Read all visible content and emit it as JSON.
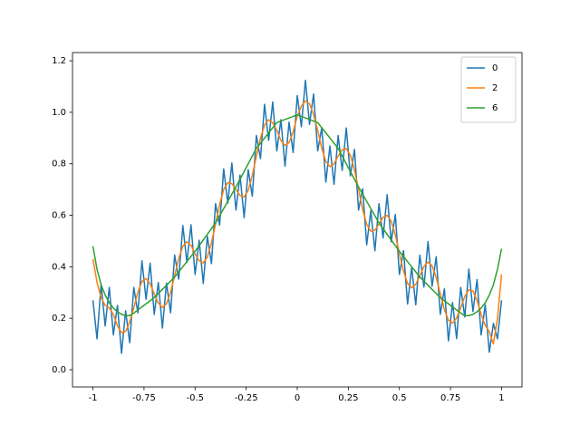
{
  "chart_data": {
    "type": "line",
    "x": [
      -1,
      -0.98,
      -0.96,
      -0.94,
      -0.92,
      -0.9,
      -0.88,
      -0.86,
      -0.84,
      -0.82,
      -0.8,
      -0.78,
      -0.76,
      -0.74,
      -0.72,
      -0.7,
      -0.68,
      -0.66,
      -0.64,
      -0.62,
      -0.6,
      -0.58,
      -0.56,
      -0.54,
      -0.52,
      -0.5,
      -0.48,
      -0.46,
      -0.44,
      -0.42,
      -0.4,
      -0.38,
      -0.36,
      -0.34,
      -0.32,
      -0.3,
      -0.28,
      -0.26,
      -0.24,
      -0.22,
      -0.2,
      -0.18,
      -0.16,
      -0.14,
      -0.12,
      -0.1,
      -0.08,
      -0.06,
      -0.04,
      -0.02,
      0,
      0.02,
      0.04,
      0.06,
      0.08,
      0.1,
      0.12,
      0.14,
      0.16,
      0.18,
      0.2,
      0.22,
      0.24,
      0.26,
      0.28,
      0.3,
      0.32,
      0.34,
      0.36,
      0.38,
      0.4,
      0.42,
      0.44,
      0.46,
      0.48,
      0.5,
      0.52,
      0.54,
      0.56,
      0.58,
      0.6,
      0.62,
      0.64,
      0.66,
      0.68,
      0.7,
      0.72,
      0.74,
      0.76,
      0.78,
      0.8,
      0.82,
      0.84,
      0.86,
      0.88,
      0.9,
      0.92,
      0.94,
      0.96,
      0.98,
      1
    ],
    "series": [
      {
        "name": "0",
        "color": "#1f77b4",
        "values": [
          0.27,
          0.12,
          0.33,
          0.17,
          0.32,
          0.135,
          0.25,
          0.064,
          0.229,
          0.105,
          0.32,
          0.221,
          0.423,
          0.274,
          0.414,
          0.215,
          0.339,
          0.162,
          0.336,
          0.221,
          0.445,
          0.352,
          0.56,
          0.417,
          0.563,
          0.37,
          0.503,
          0.335,
          0.518,
          0.412,
          0.645,
          0.562,
          0.78,
          0.647,
          0.803,
          0.62,
          0.756,
          0.591,
          0.777,
          0.674,
          0.91,
          0.82,
          1.031,
          0.891,
          1.04,
          0.85,
          0.971,
          0.791,
          0.962,
          0.844,
          1.065,
          0.944,
          1.124,
          0.953,
          1.071,
          0.85,
          0.94,
          0.729,
          0.869,
          0.72,
          0.91,
          0.774,
          0.939,
          0.753,
          0.856,
          0.62,
          0.703,
          0.485,
          0.618,
          0.462,
          0.645,
          0.512,
          0.68,
          0.497,
          0.603,
          0.37,
          0.463,
          0.255,
          0.398,
          0.252,
          0.445,
          0.321,
          0.498,
          0.324,
          0.439,
          0.215,
          0.314,
          0.112,
          0.261,
          0.121,
          0.32,
          0.205,
          0.391,
          0.226,
          0.35,
          0.135,
          0.252,
          0.068,
          0.18,
          0.12,
          0.27
        ]
      },
      {
        "name": "2",
        "color": "#ff7f0e",
        "values": [
          0.43,
          0.34,
          0.28,
          0.25,
          0.24,
          0.215,
          0.17,
          0.144,
          0.149,
          0.185,
          0.24,
          0.301,
          0.343,
          0.354,
          0.334,
          0.295,
          0.259,
          0.242,
          0.256,
          0.301,
          0.365,
          0.432,
          0.48,
          0.497,
          0.483,
          0.45,
          0.423,
          0.415,
          0.438,
          0.492,
          0.565,
          0.642,
          0.7,
          0.727,
          0.723,
          0.7,
          0.676,
          0.671,
          0.697,
          0.754,
          0.83,
          0.9,
          0.951,
          0.971,
          0.96,
          0.93,
          0.891,
          0.871,
          0.882,
          0.924,
          0.985,
          1.024,
          1.044,
          1.033,
          0.991,
          0.93,
          0.86,
          0.809,
          0.789,
          0.8,
          0.83,
          0.854,
          0.859,
          0.833,
          0.776,
          0.7,
          0.623,
          0.565,
          0.538,
          0.542,
          0.565,
          0.592,
          0.6,
          0.577,
          0.523,
          0.45,
          0.383,
          0.335,
          0.318,
          0.332,
          0.365,
          0.401,
          0.418,
          0.404,
          0.359,
          0.295,
          0.234,
          0.192,
          0.181,
          0.201,
          0.24,
          0.285,
          0.311,
          0.306,
          0.27,
          0.215,
          0.172,
          0.148,
          0.1,
          0.2,
          0.37
        ]
      },
      {
        "name": "6",
        "color": "#2ca02c",
        "values": [
          0.48,
          0.39,
          0.33,
          0.29,
          0.26,
          0.24,
          0.225,
          0.215,
          0.21,
          0.21,
          0.22,
          0.232,
          0.244,
          0.256,
          0.268,
          0.28,
          0.296,
          0.312,
          0.328,
          0.344,
          0.36,
          0.38,
          0.4,
          0.42,
          0.44,
          0.46,
          0.482,
          0.504,
          0.526,
          0.548,
          0.57,
          0.598,
          0.626,
          0.654,
          0.682,
          0.71,
          0.74,
          0.77,
          0.8,
          0.83,
          0.86,
          0.88,
          0.9,
          0.92,
          0.94,
          0.96,
          0.966,
          0.972,
          0.978,
          0.984,
          0.99,
          0.984,
          0.978,
          0.972,
          0.966,
          0.96,
          0.94,
          0.92,
          0.9,
          0.88,
          0.86,
          0.83,
          0.8,
          0.77,
          0.74,
          0.71,
          0.682,
          0.654,
          0.626,
          0.598,
          0.57,
          0.548,
          0.526,
          0.504,
          0.482,
          0.46,
          0.44,
          0.42,
          0.4,
          0.38,
          0.36,
          0.344,
          0.328,
          0.312,
          0.296,
          0.28,
          0.268,
          0.256,
          0.244,
          0.232,
          0.22,
          0.21,
          0.21,
          0.215,
          0.225,
          0.24,
          0.26,
          0.29,
          0.33,
          0.39,
          0.47
        ]
      }
    ],
    "xlim": [
      -1.1,
      1.1
    ],
    "ylim": [
      -0.067,
      1.232
    ],
    "xticks": [
      -1,
      -0.75,
      -0.5,
      -0.25,
      0,
      0.25,
      0.5,
      0.75,
      1
    ],
    "yticks": [
      {
        "value": 0,
        "label": "0.0"
      },
      0.2,
      0.4,
      0.6,
      0.8,
      {
        "value": 1,
        "label": "1.0"
      },
      1.2
    ],
    "grid": false,
    "legend": "upper right"
  }
}
